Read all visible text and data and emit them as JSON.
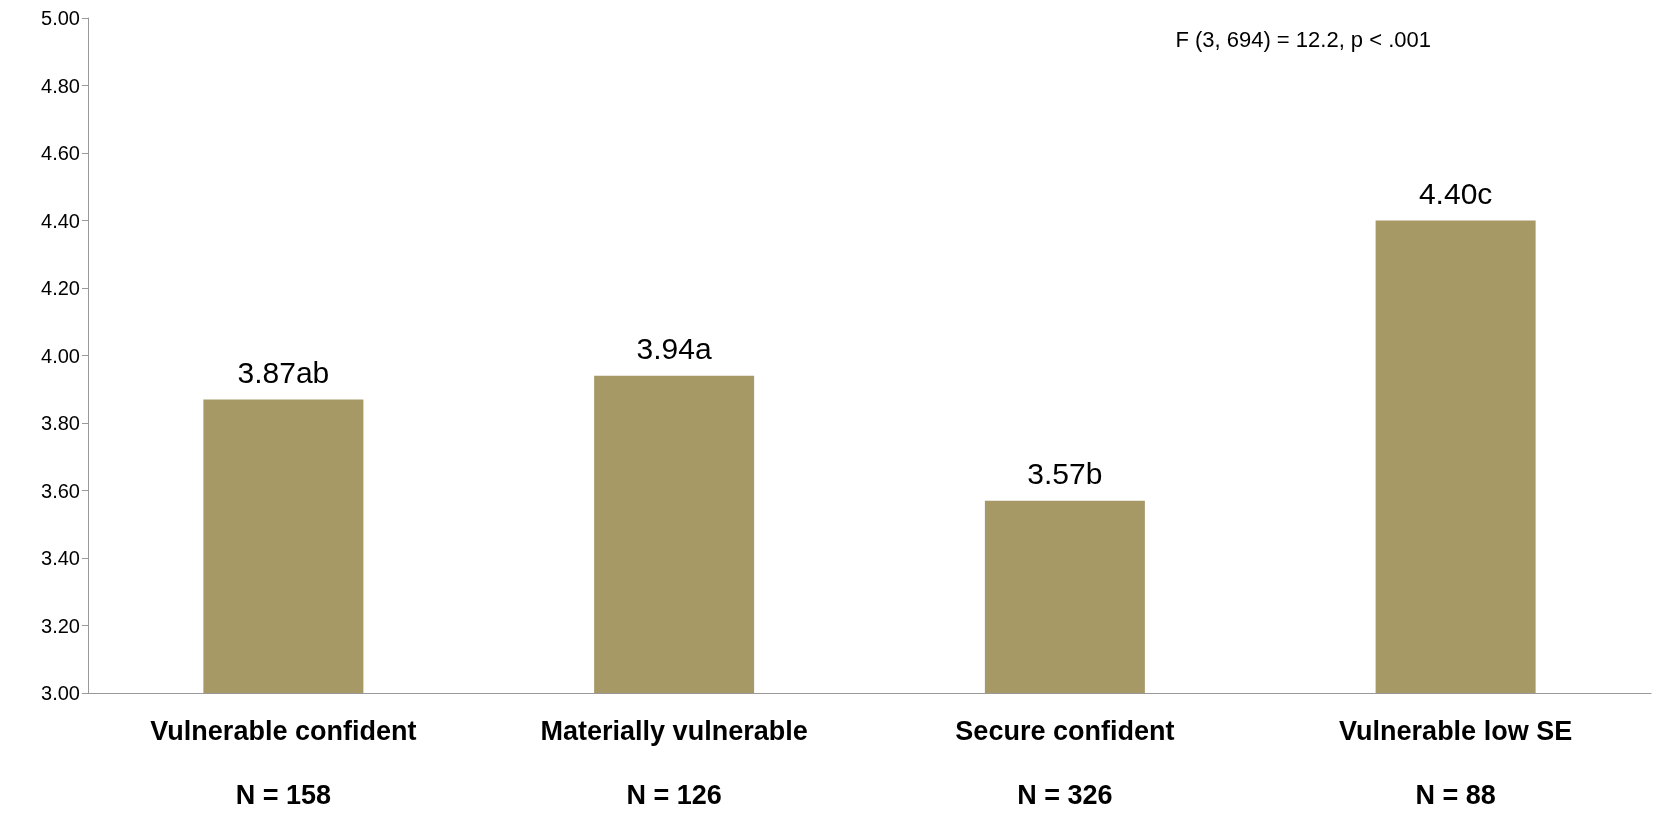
{
  "chart_data": {
    "type": "bar",
    "categories": [
      "Vulnerable confident\n\nN = 158",
      "Materially vulnerable\n\nN = 126",
      "Secure confident\n\nN = 326",
      "Vulnerable low SE\n\nN = 88"
    ],
    "values": [
      3.87,
      3.94,
      3.57,
      4.4
    ],
    "value_labels": [
      "3.87ab",
      "3.94a",
      "3.57b",
      "4.40c"
    ],
    "color": "#a69966",
    "ylim": [
      3,
      5
    ],
    "yticks": [
      {
        "value": 3,
        "label": "3.00"
      },
      {
        "value": 3.2,
        "label": "3.20"
      },
      {
        "value": 3.4,
        "label": "3.40"
      },
      {
        "value": 3.6,
        "label": "3.60"
      },
      {
        "value": 3.8,
        "label": "3.80"
      },
      {
        "value": 4,
        "label": "4.00"
      },
      {
        "value": 4.2,
        "label": "4.20"
      },
      {
        "value": 4.4,
        "label": "4.40"
      },
      {
        "value": 4.6,
        "label": "4.60"
      },
      {
        "value": 4.8,
        "label": "4.80"
      },
      {
        "value": 5,
        "label": "5.00"
      }
    ],
    "annotations": [
      "F (3, 694) = 12.2, p < .001"
    ]
  }
}
